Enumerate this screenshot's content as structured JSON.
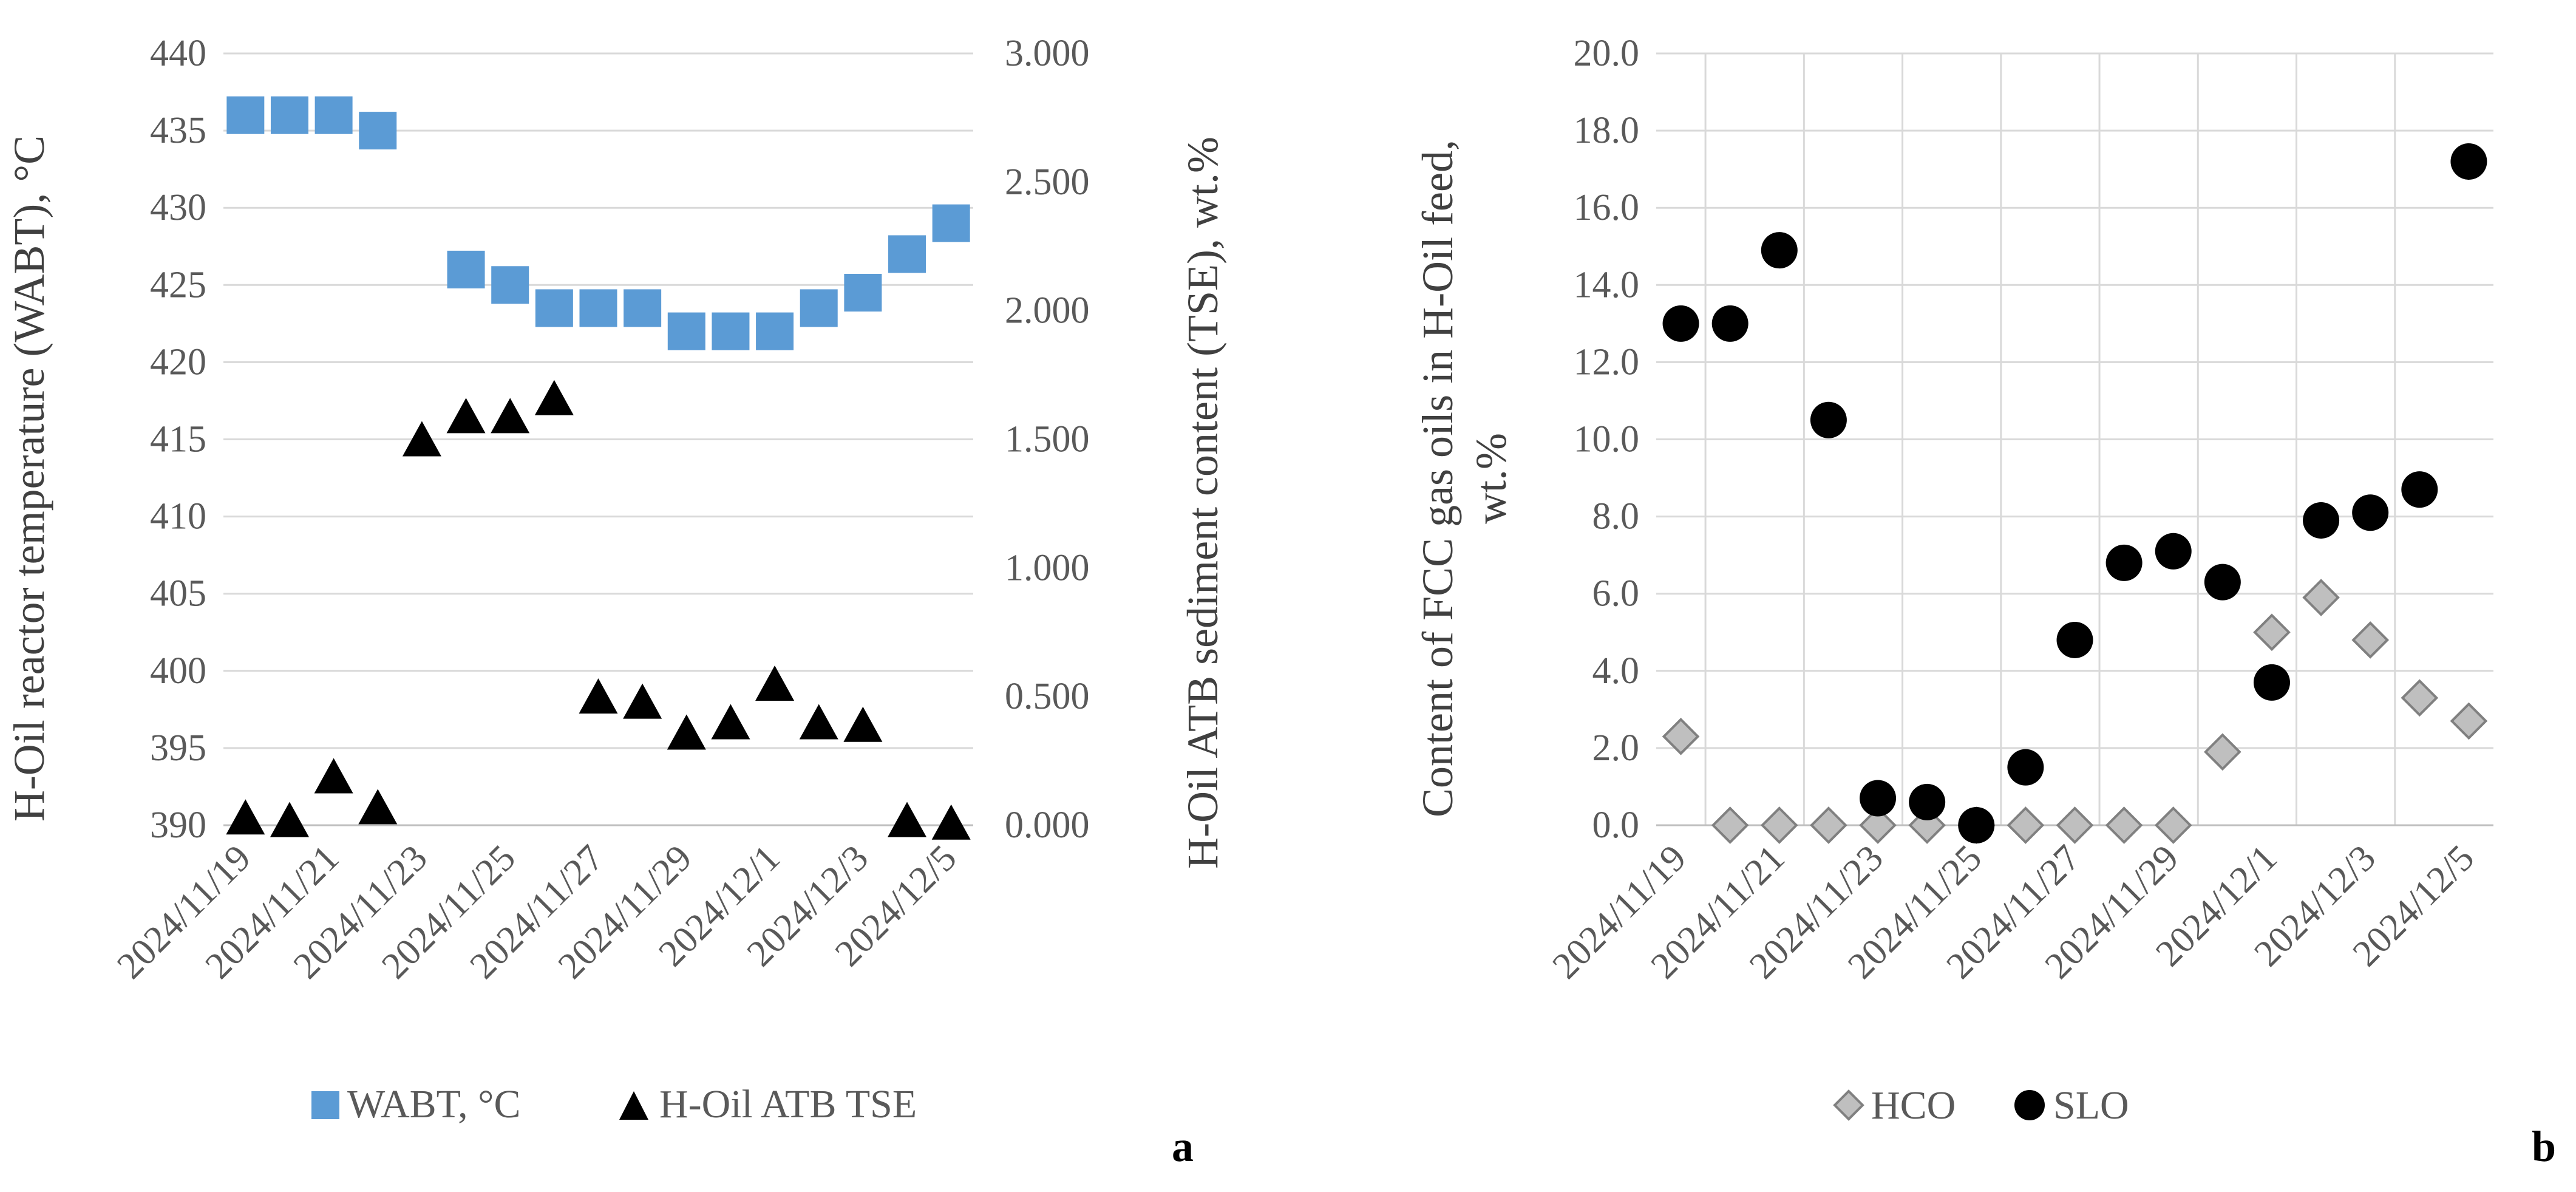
{
  "chart_data": [
    {
      "type": "scatter",
      "panel_label": "a",
      "categories": [
        "2024/11/19",
        "2024/11/20",
        "2024/11/21",
        "2024/11/22",
        "2024/11/23",
        "2024/11/24",
        "2024/11/25",
        "2024/11/26",
        "2024/11/27",
        "2024/11/28",
        "2024/11/29",
        "2024/11/30",
        "2024/12/1",
        "2024/12/2",
        "2024/12/3",
        "2024/12/4",
        "2024/12/5"
      ],
      "x_tick_labels": [
        "2024/11/19",
        "2024/11/21",
        "2024/11/23",
        "2024/11/25",
        "2024/11/27",
        "2024/11/29",
        "2024/12/1",
        "2024/12/3",
        "2024/12/5"
      ],
      "y_left_label": "H-Oil reactor temperature (WABT), °C",
      "y_left_lim": [
        390,
        440
      ],
      "y_left_ticks": [
        "390",
        "395",
        "400",
        "405",
        "410",
        "415",
        "420",
        "425",
        "430",
        "435",
        "440"
      ],
      "y_right_label": "H-Oil ATB sediment content (TSE), wt.%",
      "y_right_lim": [
        0,
        3
      ],
      "y_right_ticks": [
        "0.000",
        "0.500",
        "1.000",
        "1.500",
        "2.000",
        "2.500",
        "3.000"
      ],
      "series": [
        {
          "name": "WABT, °C",
          "axis": "left",
          "marker": "square",
          "color": "#5B9BD5",
          "values": [
            436,
            436,
            436,
            435,
            null,
            426,
            425,
            423.5,
            423.5,
            423.5,
            422,
            422,
            422,
            423.5,
            424.5,
            427,
            429
          ]
        },
        {
          "name": "H-Oil ATB TSE",
          "axis": "right",
          "marker": "triangle",
          "color": "#000000",
          "values": [
            0.03,
            0.02,
            0.19,
            0.07,
            1.5,
            1.59,
            1.59,
            1.66,
            0.5,
            0.48,
            0.36,
            0.4,
            0.55,
            0.4,
            0.39,
            0.02,
            0.01
          ]
        }
      ],
      "legend_position": "bottom"
    },
    {
      "type": "scatter",
      "panel_label": "b",
      "categories": [
        "2024/11/19",
        "2024/11/20",
        "2024/11/21",
        "2024/11/22",
        "2024/11/23",
        "2024/11/24",
        "2024/11/25",
        "2024/11/26",
        "2024/11/27",
        "2024/11/28",
        "2024/11/29",
        "2024/11/30",
        "2024/12/1",
        "2024/12/2",
        "2024/12/3",
        "2024/12/4",
        "2024/12/5"
      ],
      "x_tick_labels": [
        "2024/11/19",
        "2024/11/21",
        "2024/11/23",
        "2024/11/25",
        "2024/11/27",
        "2024/11/29",
        "2024/12/1",
        "2024/12/3",
        "2024/12/5"
      ],
      "y_label_line1": "Content of FCC gas oils in H-Oil feed,",
      "y_label_line2": "wt.%",
      "ylim": [
        0,
        20
      ],
      "y_ticks": [
        "0.0",
        "2.0",
        "4.0",
        "6.0",
        "8.0",
        "10.0",
        "12.0",
        "14.0",
        "16.0",
        "18.0",
        "20.0"
      ],
      "series": [
        {
          "name": "HCO",
          "marker": "diamond",
          "color": "#BFBFBF",
          "values": [
            2.3,
            0.0,
            0.0,
            0.0,
            0.0,
            0.0,
            0.0,
            0.0,
            0.0,
            0.0,
            0.0,
            1.9,
            5.0,
            5.9,
            4.8,
            3.3,
            2.7
          ]
        },
        {
          "name": "SLO",
          "marker": "circle",
          "color": "#000000",
          "values": [
            13.0,
            13.0,
            14.9,
            10.5,
            0.7,
            0.6,
            0.0,
            1.5,
            4.8,
            6.8,
            7.1,
            6.3,
            3.7,
            7.9,
            8.1,
            8.7,
            17.2
          ]
        }
      ],
      "legend_position": "bottom"
    }
  ]
}
